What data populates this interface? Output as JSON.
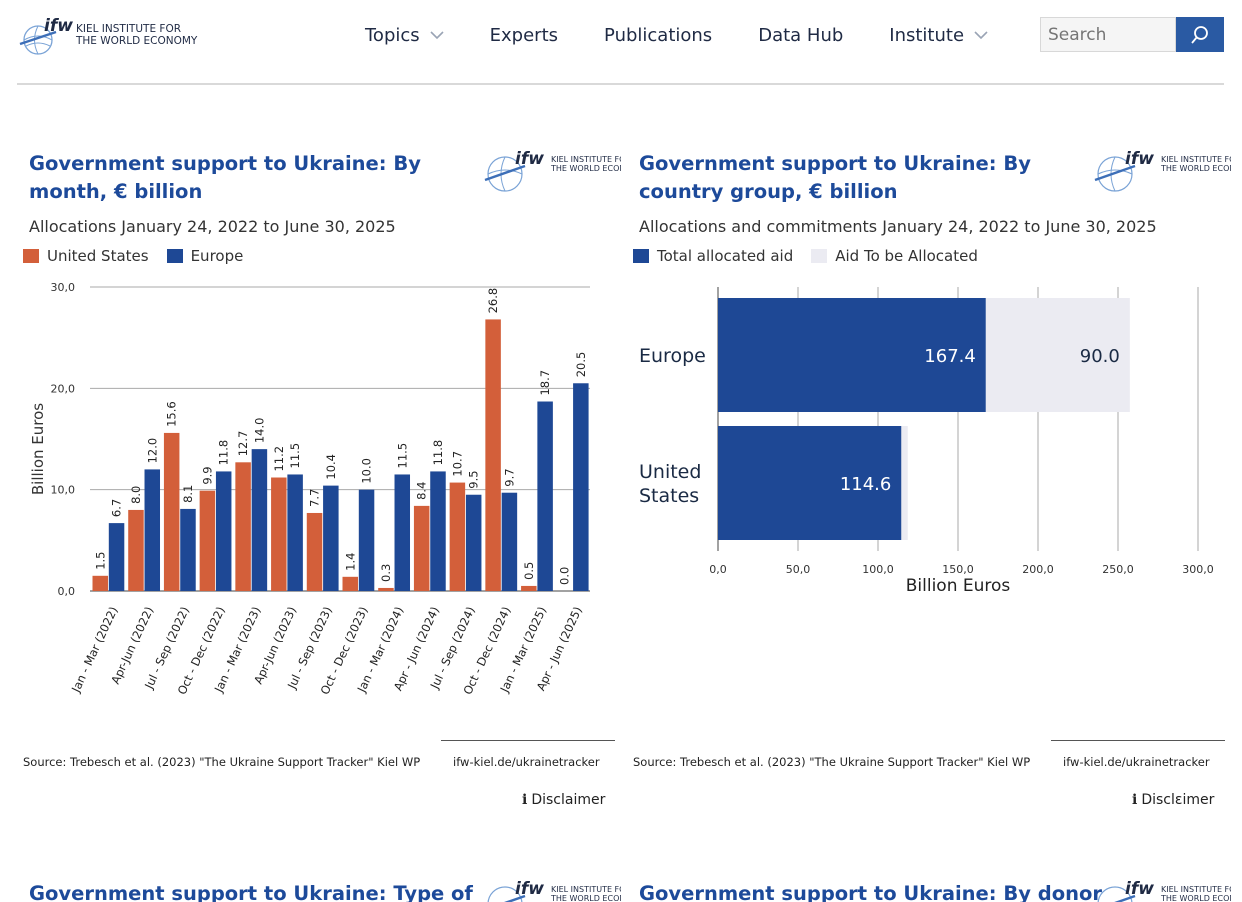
{
  "header": {
    "logo_mark": "ifw",
    "logo_line1": "KIEL INSTITUTE FOR",
    "logo_line2": "THE WORLD ECONOMY",
    "nav": [
      {
        "label": "Topics",
        "dropdown": true
      },
      {
        "label": "Experts",
        "dropdown": false
      },
      {
        "label": "Publications",
        "dropdown": false
      },
      {
        "label": "Data Hub",
        "dropdown": false
      },
      {
        "label": "Institute",
        "dropdown": true
      }
    ],
    "search_placeholder": "Search",
    "icons": {
      "search": "search-icon",
      "chevron": "chevron-down-icon"
    }
  },
  "colors": {
    "us": "#d35f3a",
    "europe": "#1e4895",
    "to_be_allocated": "#ebebf2",
    "title": "#1d4a9a",
    "grid": "#999999"
  },
  "cards": [
    {
      "title": "Government support to Ukraine: By month, € billion",
      "subtitle": "Allocations January 24, 2022 to June 30, 2025",
      "legend": [
        "United States",
        "Europe"
      ],
      "source": "Source: Trebesch et al. (2023) \"The Ukraine Support Tracker\" Kiel WP",
      "url": "ifw-kiel.de/ukrainetracker",
      "disclaimer": "Disclaimer"
    },
    {
      "title": "Government support to Ukraine: By country group, € billion",
      "subtitle": "Allocations and commitments January 24, 2022 to June 30, 2025",
      "legend": [
        "Total allocated aid",
        "Aid To be Allocated"
      ],
      "source": "Source: Trebesch et al. (2023) \"The Ukraine Support Tracker\" Kiel WP",
      "url": "ifw-kiel.de/ukrainetracker",
      "disclaimer": "Disclεimer"
    },
    {
      "title": "Government support to Ukraine: Type of"
    },
    {
      "title": "Government support to Ukraine: By donor"
    }
  ],
  "chart_data": [
    {
      "type": "bar",
      "title": "Government support to Ukraine: By month, € billion",
      "subtitle": "Allocations January 24, 2022 to June 30, 2025",
      "ylabel": "Billion Euros",
      "xlabel": "",
      "ylim": [
        0,
        30
      ],
      "yticks": [
        "0,0",
        "10,0",
        "20,0",
        "30,0"
      ],
      "categories": [
        "Jan - Mar (2022)",
        "Apr-Jun (2022)",
        "Jul - Sep (2022)",
        "Oct - Dec (2022)",
        "Jan - Mar (2023)",
        "Apr-Jun (2023)",
        "Jul - Sep (2023)",
        "Oct - Dec (2023)",
        "Jan - Mar (2024)",
        "Apr - Jun (2024)",
        "Jul - Sep (2024)",
        "Oct - Dec (2024)",
        "Jan - Mar (2025)",
        "Apr - Jun (2025)"
      ],
      "series": [
        {
          "name": "United States",
          "values": [
            1.5,
            8.0,
            15.6,
            9.9,
            12.7,
            11.2,
            7.7,
            1.4,
            0.3,
            8.4,
            10.7,
            26.8,
            0.5,
            0.0
          ]
        },
        {
          "name": "Europe",
          "values": [
            6.7,
            12.0,
            8.1,
            11.8,
            14.0,
            11.5,
            10.4,
            10.0,
            11.5,
            11.8,
            9.5,
            9.7,
            18.7,
            20.5
          ]
        }
      ],
      "grid": true,
      "legend_position": "top-left"
    },
    {
      "type": "bar",
      "orientation": "horizontal",
      "stacked": true,
      "title": "Government support to Ukraine: By country group, € billion",
      "subtitle": "Allocations and commitments January 24, 2022 to June 30, 2025",
      "xlabel": "Billion Euros",
      "ylabel": "",
      "xlim": [
        0,
        300
      ],
      "xticks": [
        "0,0",
        "50,0",
        "100,0",
        "150,0",
        "200,0",
        "250,0",
        "300,0"
      ],
      "categories": [
        "Europe",
        "United States"
      ],
      "series": [
        {
          "name": "Total allocated aid",
          "values": [
            167.4,
            114.6
          ],
          "labels": [
            "167.4",
            "114.6"
          ]
        },
        {
          "name": "Aid To be Allocated",
          "values": [
            90.0,
            4.0
          ],
          "labels": [
            "90.0",
            ""
          ]
        }
      ],
      "grid": true,
      "legend_position": "top-left"
    }
  ]
}
